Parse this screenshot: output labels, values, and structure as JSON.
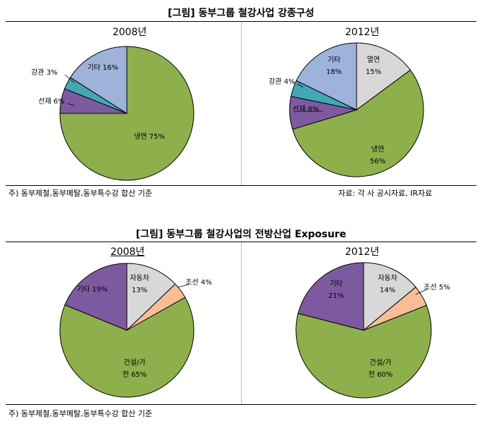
{
  "figure1": {
    "title": "[그림] 동부그룹 철강사업 강종구성",
    "note": "주) 동부제철,동부메탈,동부특수강 합산 기준",
    "source": "자료: 각 사 공시자료, IR자료"
  },
  "figure2": {
    "title": "[그림] 동부그룹 철강사업의 전방산업 Exposure",
    "note": "주) 동부제철,동부메탈,동부특수강 합산 기준"
  },
  "chart_data": [
    {
      "type": "pie",
      "title": "2008년",
      "slices": [
        {
          "label": "냉연",
          "value": 75,
          "display": "냉연 75%",
          "color": "#8db04d"
        },
        {
          "label": "선재",
          "value": 6,
          "display": "선재 6%",
          "color": "#7d5aa0"
        },
        {
          "label": "강관",
          "value": 3,
          "display": "강관 3%",
          "color": "#44a7b6"
        },
        {
          "label": "기타",
          "value": 16,
          "display": "기타 16%",
          "color": "#9fb2da"
        }
      ]
    },
    {
      "type": "pie",
      "title": "2012년",
      "slices": [
        {
          "label": "열연",
          "value": 15,
          "display": [
            "열연",
            "15%"
          ],
          "color": "#d8d8d8"
        },
        {
          "label": "냉연",
          "value": 56,
          "display": [
            "냉연",
            "56%"
          ],
          "color": "#8db04d"
        },
        {
          "label": "선재",
          "value": 8,
          "display": "선재 8%",
          "color": "#7d5aa0"
        },
        {
          "label": "강관",
          "value": 4,
          "display": "강관 4%",
          "color": "#44a7b6"
        },
        {
          "label": "기타",
          "value": 18,
          "display": [
            "기타",
            "18%"
          ],
          "color": "#9fb2da"
        }
      ]
    },
    {
      "type": "pie",
      "title": "2008년",
      "slices": [
        {
          "label": "자동차",
          "value": 13,
          "display": [
            "자동차",
            "13%"
          ],
          "color": "#d8d8d8"
        },
        {
          "label": "조선",
          "value": 4,
          "display": "조선 4%",
          "color": "#f7be96"
        },
        {
          "label": "건설/가전",
          "value": 65,
          "display": [
            "건설/가",
            "전 65%"
          ],
          "color": "#8db04d"
        },
        {
          "label": "기타",
          "value": 19,
          "display": "기타 19%",
          "color": "#7d5aa0"
        }
      ]
    },
    {
      "type": "pie",
      "title": "2012년",
      "slices": [
        {
          "label": "자동차",
          "value": 14,
          "display": [
            "자동차",
            "14%"
          ],
          "color": "#d8d8d8"
        },
        {
          "label": "조선",
          "value": 5,
          "display": "조선 5%",
          "color": "#f7be96"
        },
        {
          "label": "건설/가전",
          "value": 60,
          "display": [
            "건설/가",
            "전 60%"
          ],
          "color": "#8db04d"
        },
        {
          "label": "기타",
          "value": 21,
          "display": [
            "기타",
            "21%"
          ],
          "color": "#7d5aa0"
        }
      ]
    }
  ]
}
